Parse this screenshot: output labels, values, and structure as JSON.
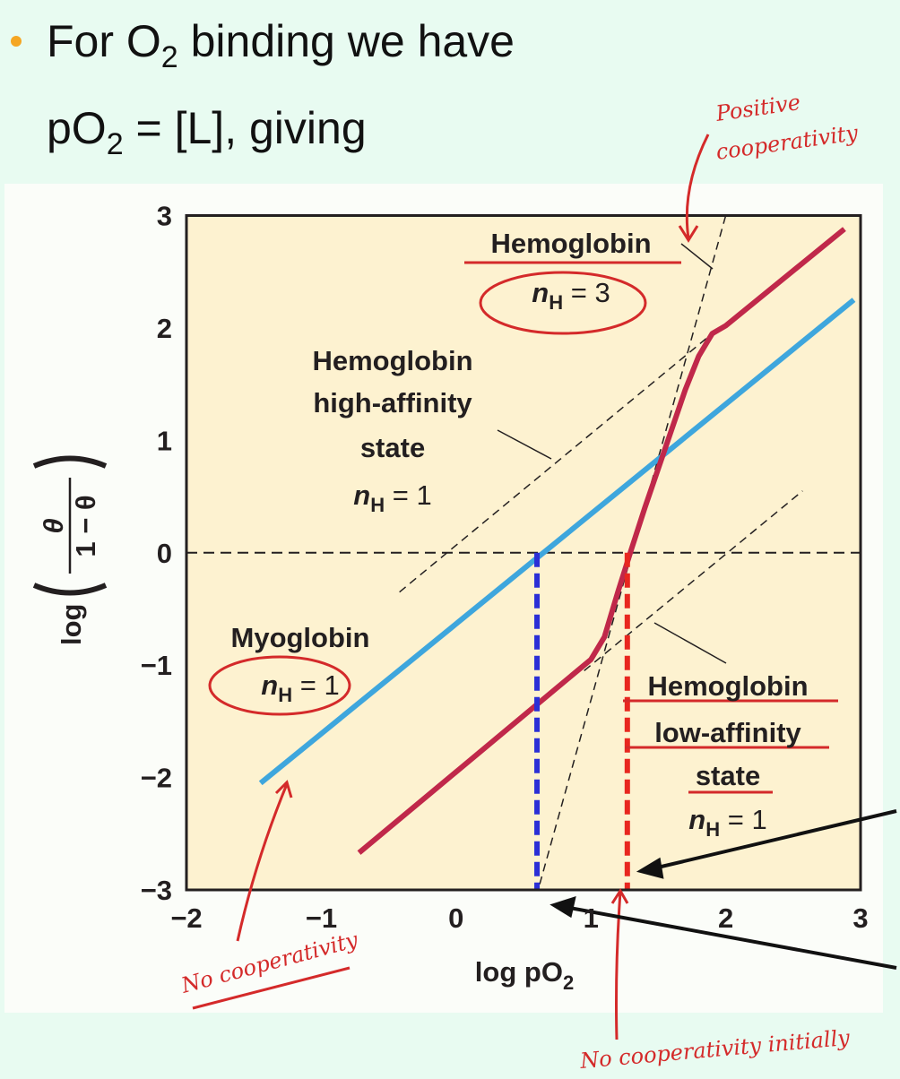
{
  "bullet": {
    "lines": [
      [
        "For O",
        "2",
        " binding we have"
      ],
      [
        "pO",
        "2",
        " = [L], giving"
      ]
    ]
  },
  "chart_data": {
    "type": "line",
    "x_label": [
      "log pO",
      "2"
    ],
    "y_label": {
      "prefix": "log",
      "numerator": "θ",
      "denominator": "1 − θ"
    },
    "xlim": [
      -2,
      3
    ],
    "ylim": [
      -3,
      3
    ],
    "xticks": [
      {
        "value": -2,
        "label": "−2"
      },
      {
        "value": -1,
        "label": "−1"
      },
      0,
      1,
      2,
      3
    ],
    "yticks": [
      {
        "value": -3,
        "label": "−3"
      },
      {
        "value": -2,
        "label": "−2"
      },
      {
        "value": -1,
        "label": "−1"
      },
      0,
      1,
      2,
      3
    ],
    "series": [
      {
        "color": "#3ea6dd",
        "x": [
          -1.45,
          2.95
        ],
        "values": [
          -2.05,
          2.25
        ]
      },
      {
        "color": "#c0284a",
        "x": [
          -0.72,
          1.0,
          1.1,
          1.2,
          1.3,
          1.4,
          1.5,
          1.6,
          1.7,
          1.8,
          1.9,
          2.0,
          2.88
        ],
        "values": [
          -2.67,
          -0.95,
          -0.75,
          -0.35,
          0.03,
          0.4,
          0.75,
          1.1,
          1.45,
          1.75,
          1.95,
          2.02,
          2.88
        ]
      }
    ],
    "reference_lines": [
      {
        "x": [
          -2,
          3
        ],
        "values": [
          0,
          0
        ]
      },
      {
        "x": [
          -0.42,
          1.9
        ],
        "values": [
          -0.35,
          1.95
        ]
      },
      {
        "x": [
          0.95,
          2.57
        ],
        "values": [
          -1.05,
          0.55
        ]
      },
      {
        "x": [
          0.62,
          2.0
        ],
        "values": [
          -2.95,
          3.0
        ]
      }
    ],
    "markers": [
      {
        "x": 0.6,
        "values": [
          0,
          -3
        ],
        "color": "#2b2fd6"
      },
      {
        "x": 1.27,
        "values": [
          0,
          -3
        ],
        "color": "#e8271f"
      }
    ],
    "annotations": [
      {
        "lines": [
          "Hemoglobin"
        ],
        "hill": [
          "n",
          "H",
          " = 3"
        ]
      },
      {
        "lines": [
          "Hemoglobin",
          "high-affinity",
          "state"
        ],
        "hill": [
          "n",
          "H",
          " = 1"
        ]
      },
      {
        "lines": [
          "Myoglobin"
        ],
        "hill": [
          "n",
          "H",
          " = 1"
        ]
      },
      {
        "lines": [
          "Hemoglobin",
          "low-affinity",
          "state"
        ],
        "hill": [
          "n",
          "H",
          " = 1"
        ]
      }
    ]
  },
  "notes": [
    [
      "Positive",
      "cooperativity"
    ],
    [
      "No cooperativity"
    ],
    [
      "No cooperativity initially"
    ]
  ]
}
